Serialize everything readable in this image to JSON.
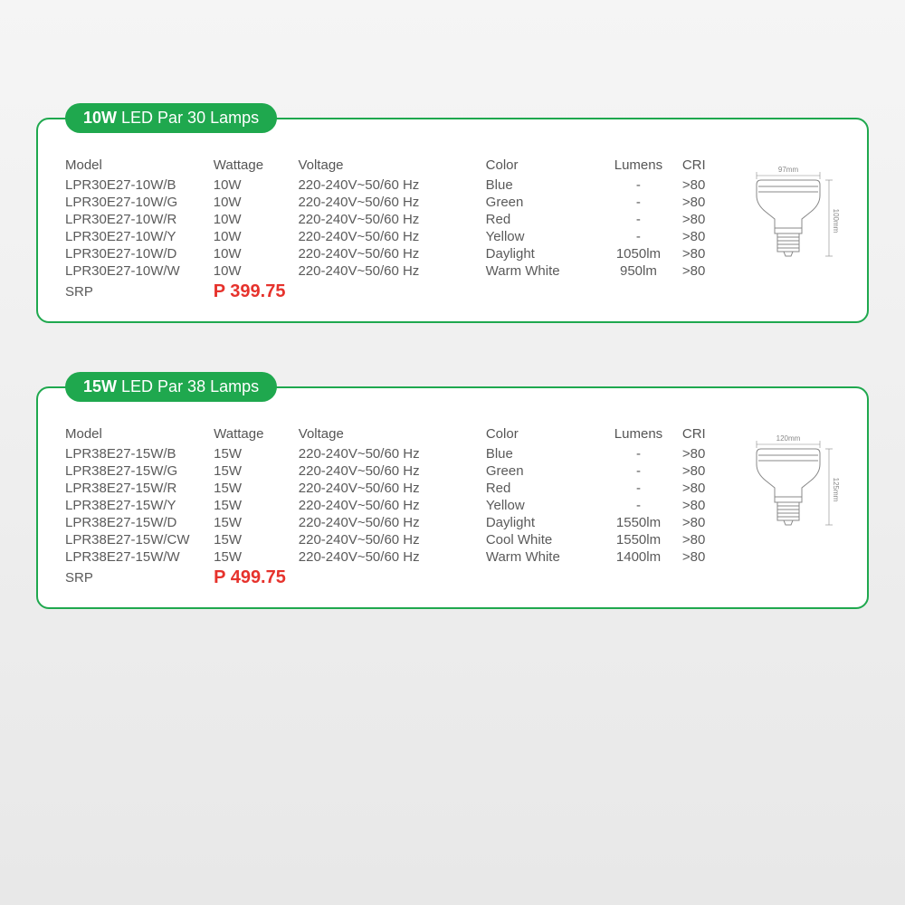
{
  "colors": {
    "border": "#1fa84e",
    "badge_bg": "#1fa84e",
    "badge_text": "#ffffff",
    "price": "#e6322c",
    "text": "#5a5a5a",
    "diagram": "#888888"
  },
  "cards": [
    {
      "badge_watt": "10W",
      "badge_rest": "LED Par 30 Lamps",
      "headers": [
        "Model",
        "Wattage",
        "Voltage",
        "Color",
        "Lumens",
        "CRI"
      ],
      "rows": [
        {
          "model": "LPR30E27-10W/B",
          "watt": "10W",
          "volt": "220-240V~50/60 Hz",
          "color": "Blue",
          "lumens": "-",
          "cri": ">80"
        },
        {
          "model": "LPR30E27-10W/G",
          "watt": "10W",
          "volt": "220-240V~50/60 Hz",
          "color": "Green",
          "lumens": "-",
          "cri": ">80"
        },
        {
          "model": "LPR30E27-10W/R",
          "watt": "10W",
          "volt": "220-240V~50/60 Hz",
          "color": "Red",
          "lumens": "-",
          "cri": ">80"
        },
        {
          "model": "LPR30E27-10W/Y",
          "watt": "10W",
          "volt": "220-240V~50/60 Hz",
          "color": "Yellow",
          "lumens": "-",
          "cri": ">80"
        },
        {
          "model": "LPR30E27-10W/D",
          "watt": "10W",
          "volt": "220-240V~50/60 Hz",
          "color": "Daylight",
          "lumens": "1050lm",
          "cri": ">80"
        },
        {
          "model": "LPR30E27-10W/W",
          "watt": "10W",
          "volt": "220-240V~50/60 Hz",
          "color": "Warm White",
          "lumens": "950lm",
          "cri": ">80"
        }
      ],
      "srp_label": "SRP",
      "price": "P 399.75",
      "diagram": {
        "width_label": "97mm",
        "height_label": "100mm"
      }
    },
    {
      "badge_watt": "15W",
      "badge_rest": "LED Par 38 Lamps",
      "headers": [
        "Model",
        "Wattage",
        "Voltage",
        "Color",
        "Lumens",
        "CRI"
      ],
      "rows": [
        {
          "model": "LPR38E27-15W/B",
          "watt": "15W",
          "volt": "220-240V~50/60 Hz",
          "color": "Blue",
          "lumens": "-",
          "cri": ">80"
        },
        {
          "model": "LPR38E27-15W/G",
          "watt": "15W",
          "volt": "220-240V~50/60 Hz",
          "color": "Green",
          "lumens": "-",
          "cri": ">80"
        },
        {
          "model": "LPR38E27-15W/R",
          "watt": "15W",
          "volt": "220-240V~50/60 Hz",
          "color": "Red",
          "lumens": "-",
          "cri": ">80"
        },
        {
          "model": "LPR38E27-15W/Y",
          "watt": "15W",
          "volt": "220-240V~50/60 Hz",
          "color": "Yellow",
          "lumens": "-",
          "cri": ">80"
        },
        {
          "model": "LPR38E27-15W/D",
          "watt": "15W",
          "volt": "220-240V~50/60 Hz",
          "color": "Daylight",
          "lumens": "1550lm",
          "cri": ">80"
        },
        {
          "model": "LPR38E27-15W/CW",
          "watt": "15W",
          "volt": "220-240V~50/60 Hz",
          "color": "Cool White",
          "lumens": "1550lm",
          "cri": ">80"
        },
        {
          "model": "LPR38E27-15W/W",
          "watt": "15W",
          "volt": "220-240V~50/60 Hz",
          "color": "Warm White",
          "lumens": "1400lm",
          "cri": ">80"
        }
      ],
      "srp_label": "SRP",
      "price": "P 499.75",
      "diagram": {
        "width_label": "120mm",
        "height_label": "125mm"
      }
    }
  ],
  "column_widths": [
    "165px",
    "95px",
    "210px",
    "130px",
    "90px",
    "55px"
  ]
}
